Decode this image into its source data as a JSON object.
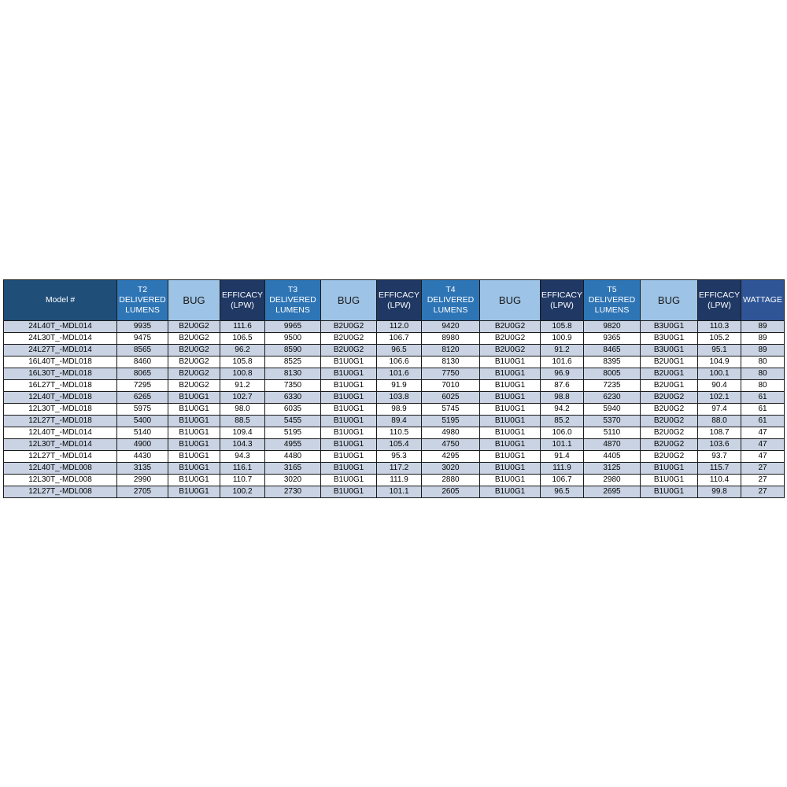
{
  "table": {
    "headers": {
      "model": "Model #",
      "t2_lumens": "T2 DELIVERED LUMENS",
      "t2_bug": "BUG",
      "t2_efficacy": "EFFICACY (LPW)",
      "t3_lumens": "T3 DELIVERED LUMENS",
      "t3_bug": "BUG",
      "t3_efficacy": "EFFICACY (LPW)",
      "t4_lumens": "T4 DELIVERED LUMENS",
      "t4_bug": "BUG",
      "t4_efficacy": "EFFICACY (LPW)",
      "t5_lumens": "T5 DELIVERED LUMENS",
      "t5_bug": "BUG",
      "t5_efficacy": "EFFICACY (LPW)",
      "wattage": "WATTAGE"
    },
    "rows": [
      [
        "24L40T_-MDL014",
        "9935",
        "B2U0G2",
        "111.6",
        "9965",
        "B2U0G2",
        "112.0",
        "9420",
        "B2U0G2",
        "105.8",
        "9820",
        "B3U0G1",
        "110.3",
        "89"
      ],
      [
        "24L30T_-MDL014",
        "9475",
        "B2U0G2",
        "106.5",
        "9500",
        "B2U0G2",
        "106.7",
        "8980",
        "B2U0G2",
        "100.9",
        "9365",
        "B3U0G1",
        "105.2",
        "89"
      ],
      [
        "24L27T_-MDL014",
        "8565",
        "B2U0G2",
        "96.2",
        "8590",
        "B2U0G2",
        "96.5",
        "8120",
        "B2U0G2",
        "91.2",
        "8465",
        "B3U0G1",
        "95.1",
        "89"
      ],
      [
        "16L40T_-MDL018",
        "8460",
        "B2U0G2",
        "105.8",
        "8525",
        "B1U0G1",
        "106.6",
        "8130",
        "B1U0G1",
        "101.6",
        "8395",
        "B2U0G1",
        "104.9",
        "80"
      ],
      [
        "16L30T_-MDL018",
        "8065",
        "B2U0G2",
        "100.8",
        "8130",
        "B1U0G1",
        "101.6",
        "7750",
        "B1U0G1",
        "96.9",
        "8005",
        "B2U0G1",
        "100.1",
        "80"
      ],
      [
        "16L27T_-MDL018",
        "7295",
        "B2U0G2",
        "91.2",
        "7350",
        "B1U0G1",
        "91.9",
        "7010",
        "B1U0G1",
        "87.6",
        "7235",
        "B2U0G1",
        "90.4",
        "80"
      ],
      [
        "12L40T_-MDL018",
        "6265",
        "B1U0G1",
        "102.7",
        "6330",
        "B1U0G1",
        "103.8",
        "6025",
        "B1U0G1",
        "98.8",
        "6230",
        "B2U0G2",
        "102.1",
        "61"
      ],
      [
        "12L30T_-MDL018",
        "5975",
        "B1U0G1",
        "98.0",
        "6035",
        "B1U0G1",
        "98.9",
        "5745",
        "B1U0G1",
        "94.2",
        "5940",
        "B2U0G2",
        "97.4",
        "61"
      ],
      [
        "12L27T_-MDL018",
        "5400",
        "B1U0G1",
        "88.5",
        "5455",
        "B1U0G1",
        "89.4",
        "5195",
        "B1U0G1",
        "85.2",
        "5370",
        "B2U0G2",
        "88.0",
        "61"
      ],
      [
        "12L40T_-MDL014",
        "5140",
        "B1U0G1",
        "109.4",
        "5195",
        "B1U0G1",
        "110.5",
        "4980",
        "B1U0G1",
        "106.0",
        "5110",
        "B2U0G2",
        "108.7",
        "47"
      ],
      [
        "12L30T_-MDL014",
        "4900",
        "B1U0G1",
        "104.3",
        "4955",
        "B1U0G1",
        "105.4",
        "4750",
        "B1U0G1",
        "101.1",
        "4870",
        "B2U0G2",
        "103.6",
        "47"
      ],
      [
        "12L27T_-MDL014",
        "4430",
        "B1U0G1",
        "94.3",
        "4480",
        "B1U0G1",
        "95.3",
        "4295",
        "B1U0G1",
        "91.4",
        "4405",
        "B2U0G2",
        "93.7",
        "47"
      ],
      [
        "12L40T_-MDL008",
        "3135",
        "B1U0G1",
        "116.1",
        "3165",
        "B1U0G1",
        "117.2",
        "3020",
        "B1U0G1",
        "111.9",
        "3125",
        "B1U0G1",
        "115.7",
        "27"
      ],
      [
        "12L30T_-MDL008",
        "2990",
        "B1U0G1",
        "110.7",
        "3020",
        "B1U0G1",
        "111.9",
        "2880",
        "B1U0G1",
        "106.7",
        "2980",
        "B1U0G1",
        "110.4",
        "27"
      ],
      [
        "12L27T_-MDL008",
        "2705",
        "B1U0G1",
        "100.2",
        "2730",
        "B1U0G1",
        "101.1",
        "2605",
        "B1U0G1",
        "96.5",
        "2695",
        "B1U0G1",
        "99.8",
        "27"
      ]
    ]
  }
}
